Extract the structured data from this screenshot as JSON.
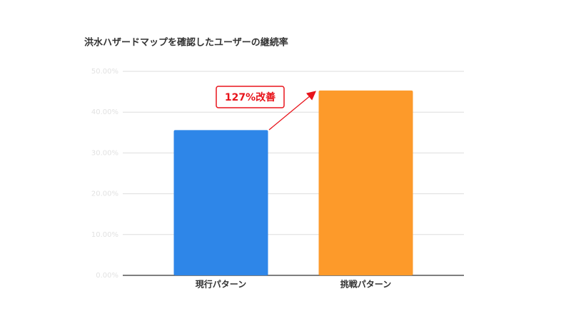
{
  "chart_data": {
    "type": "bar",
    "title": "洪水ハザードマップを確認したユーザーの継続率",
    "categories": [
      "現行パターン",
      "挑戦パターン"
    ],
    "values": [
      35.6,
      45.3
    ],
    "colors": [
      "#2e86e8",
      "#fd9a2a"
    ],
    "ylim": [
      0,
      50
    ],
    "yticks": [
      {
        "value": 0,
        "label": "0.00%"
      },
      {
        "value": 10,
        "label": "10.00%"
      },
      {
        "value": 20,
        "label": "20.00%"
      },
      {
        "value": 30,
        "label": "30.00%"
      },
      {
        "value": 40,
        "label": "40.00%"
      },
      {
        "value": 50,
        "label": "50.00%"
      }
    ],
    "grid": true,
    "annotation": "127%改善"
  }
}
